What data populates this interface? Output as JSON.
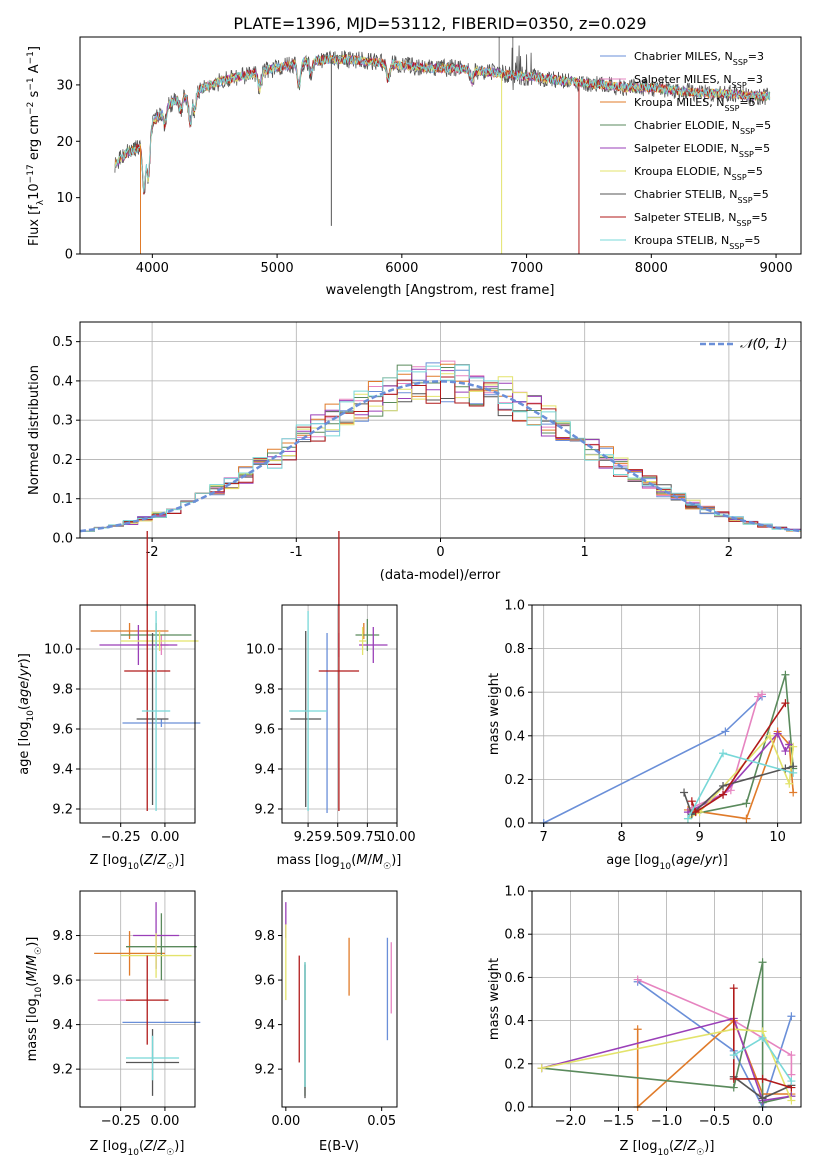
{
  "title": "PLATE=1396, MJD=53112, FIBERID=0350, z=0.029",
  "colors": {
    "c0": "#6a8fd8",
    "c1": "#e684c0",
    "c2": "#e07b2a",
    "c3": "#5a8a5c",
    "c4": "#9a3fb8",
    "c5": "#e3e36b",
    "c6": "#555555",
    "c7": "#b11a1a",
    "c8": "#78d8d8"
  },
  "chart_data": [
    {
      "id": "spectrum",
      "type": "line",
      "xlabel": "wavelength [Angstrom, rest frame]",
      "ylabel": "Flux [f_λ10^-17 erg cm^-2 s^-1 A^-1]",
      "xlim": [
        3420,
        9200
      ],
      "ylim": [
        0,
        38.5
      ],
      "xticks": [
        4000,
        5000,
        6000,
        7000,
        8000,
        9000
      ],
      "yticks": [
        0,
        10,
        20,
        30
      ],
      "grid": false,
      "legend_position": "top-right",
      "series": [
        {
          "name": "Chabrier MILES, N_SSP=3",
          "color_key": "c0"
        },
        {
          "name": "Salpeter MILES, N_SSP=3",
          "color_key": "c1"
        },
        {
          "name": "Kroupa MILES, N_SSP=5",
          "color_key": "c2"
        },
        {
          "name": "Chabrier ELODIE, N_SSP=5",
          "color_key": "c3"
        },
        {
          "name": "Salpeter ELODIE, N_SSP=5",
          "color_key": "c4"
        },
        {
          "name": "Kroupa ELODIE, N_SSP=5",
          "color_key": "c5"
        },
        {
          "name": "Chabrier STELIB, N_SSP=5",
          "color_key": "c6"
        },
        {
          "name": "Salpeter STELIB, N_SSP=5",
          "color_key": "c7"
        },
        {
          "name": "Kroupa STELIB, N_SSP=5",
          "color_key": "c8"
        }
      ],
      "continuum": {
        "x": [
          3700,
          3800,
          3900,
          4000,
          4100,
          4200,
          4300,
          4400,
          4600,
          4800,
          5000,
          5200,
          5400,
          5600,
          5800,
          6000,
          6200,
          6400,
          6600,
          6800,
          7000,
          7200,
          7400,
          7600,
          7800,
          8000,
          8200,
          8400,
          8600,
          8800,
          8950
        ],
        "y": [
          16,
          18,
          19,
          23,
          26,
          27.5,
          28,
          29.5,
          31,
          32,
          33,
          34,
          34.5,
          34.5,
          34,
          33.5,
          33,
          33,
          32.5,
          32,
          31.5,
          31,
          30.5,
          30,
          29.5,
          29.5,
          29,
          28.5,
          28.5,
          28,
          28
        ]
      }
    },
    {
      "id": "residuals",
      "type": "histogram",
      "xlabel": "(data-model)/error",
      "ylabel": "Normed distribution",
      "xlim": [
        -2.5,
        2.5
      ],
      "ylim": [
        0,
        0.55
      ],
      "xticks": [
        -2,
        -1,
        0,
        1,
        2
      ],
      "yticks": [
        0.0,
        0.1,
        0.2,
        0.3,
        0.4,
        0.5
      ],
      "grid": true,
      "legend": "N(0,1)",
      "legend_position": "top-right",
      "bin_width": 0.1
    },
    {
      "id": "age-vs-Z",
      "type": "scatter",
      "xlabel": "Z [log10(Z/Z☉)]",
      "ylabel": "age  [log10(age/yr)]",
      "xlim": [
        -0.48,
        0.17
      ],
      "ylim": [
        9.13,
        10.22
      ],
      "xticks": [
        -0.25,
        0.0
      ],
      "xtick_labels": [
        "−0.25",
        "0.00"
      ],
      "yticks": [
        9.2,
        9.4,
        9.6,
        9.8,
        10.0
      ],
      "grid": true,
      "points": [
        {
          "color_key": "c0",
          "x": -0.02,
          "xerr": 0.22,
          "y": 9.63,
          "yerr": 0.02
        },
        {
          "color_key": "c1",
          "x": -0.02,
          "xerr": 0.04,
          "y": 10.02,
          "yerr": 0.05
        },
        {
          "color_key": "c2",
          "x": -0.2,
          "xerr": 0.22,
          "y": 10.09,
          "yerr": 0.04
        },
        {
          "color_key": "c3",
          "x": -0.05,
          "xerr": 0.2,
          "y": 10.07,
          "yerr": 0.06
        },
        {
          "color_key": "c4",
          "x": -0.15,
          "xerr": 0.22,
          "y": 10.02,
          "yerr": 0.1
        },
        {
          "color_key": "c5",
          "x": -0.03,
          "xerr": 0.22,
          "y": 10.04,
          "yerr": 0.05
        },
        {
          "color_key": "c6",
          "x": -0.07,
          "xerr": 0.09,
          "y": 9.65,
          "yerr": 0.43
        },
        {
          "color_key": "c7",
          "x": -0.1,
          "xerr": 0.13,
          "y": 9.89,
          "yerr": 0.7
        },
        {
          "color_key": "c8",
          "x": -0.05,
          "xerr": 0.08,
          "y": 9.69,
          "yerr": 0.5
        }
      ]
    },
    {
      "id": "age-vs-mass",
      "type": "scatter",
      "xlabel": "mass [log10(M/M☉)]",
      "xlim": [
        9.03,
        10.0
      ],
      "ylim": [
        9.13,
        10.22
      ],
      "xticks": [
        9.25,
        9.5,
        9.75,
        10.0
      ],
      "xtick_labels": [
        "9.25",
        "9.50",
        "9.75",
        "10.00"
      ],
      "yticks": [
        9.2,
        9.4,
        9.6,
        9.8,
        10.0
      ],
      "grid": true,
      "points": [
        {
          "color_key": "c0",
          "x": 9.41,
          "xerr": 0.0,
          "y": 9.63,
          "yerr": 0.45
        },
        {
          "color_key": "c1",
          "x": 9.51,
          "xerr": 0.0,
          "y": 10.02,
          "yerr": 0.06
        },
        {
          "color_key": "c2",
          "x": 9.72,
          "xerr": 0.0,
          "y": 10.09,
          "yerr": 0.04
        },
        {
          "color_key": "c3",
          "x": 9.75,
          "xerr": 0.1,
          "y": 10.07,
          "yerr": 0.08
        },
        {
          "color_key": "c4",
          "x": 9.8,
          "xerr": 0.12,
          "y": 10.02,
          "yerr": 0.09
        },
        {
          "color_key": "c5",
          "x": 9.71,
          "xerr": 0.03,
          "y": 10.04,
          "yerr": 0.07
        },
        {
          "color_key": "c6",
          "x": 9.23,
          "xerr": 0.13,
          "y": 9.65,
          "yerr": 0.44
        },
        {
          "color_key": "c7",
          "x": 9.51,
          "xerr": 0.17,
          "y": 9.89,
          "yerr": 0.7
        },
        {
          "color_key": "c8",
          "x": 9.25,
          "xerr": 0.16,
          "y": 9.69,
          "yerr": 0.5
        }
      ]
    },
    {
      "id": "weight-vs-age",
      "type": "line",
      "xlabel": "age  [log10(age/yr)]",
      "ylabel": "mass weight",
      "xlim": [
        6.85,
        10.3
      ],
      "ylim": [
        0,
        1.0
      ],
      "xticks": [
        7,
        8,
        9,
        10
      ],
      "yticks": [
        0.0,
        0.2,
        0.4,
        0.6,
        0.8,
        1.0
      ],
      "grid": true,
      "series": [
        {
          "color_key": "c0",
          "x": [
            7.0,
            9.33,
            9.8
          ],
          "y": [
            0.0,
            0.42,
            0.58
          ]
        },
        {
          "color_key": "c1",
          "x": [
            8.9,
            9.4,
            9.75,
            9.8
          ],
          "y": [
            0.07,
            0.15,
            0.58,
            0.59
          ]
        },
        {
          "color_key": "c2",
          "x": [
            8.85,
            9.6,
            10.0,
            10.15,
            10.2
          ],
          "y": [
            0.06,
            0.02,
            0.42,
            0.36,
            0.14
          ]
        },
        {
          "color_key": "c3",
          "x": [
            8.9,
            9.6,
            10.1,
            10.2
          ],
          "y": [
            0.04,
            0.09,
            0.68,
            0.25
          ]
        },
        {
          "color_key": "c4",
          "x": [
            8.85,
            9.3,
            10.0,
            10.1,
            10.15
          ],
          "y": [
            0.05,
            0.13,
            0.41,
            0.33,
            0.36
          ]
        },
        {
          "color_key": "c5",
          "x": [
            8.85,
            9.0,
            9.9,
            10.15,
            10.2
          ],
          "y": [
            0.02,
            0.05,
            0.4,
            0.18,
            0.35
          ]
        },
        {
          "color_key": "c6",
          "x": [
            8.8,
            8.9,
            9.3,
            10.1,
            10.2
          ],
          "y": [
            0.14,
            0.04,
            0.17,
            0.25,
            0.26
          ]
        },
        {
          "color_key": "c7",
          "x": [
            8.9,
            8.95,
            9.3,
            10.1
          ],
          "y": [
            0.1,
            0.05,
            0.13,
            0.55
          ]
        },
        {
          "color_key": "c8",
          "x": [
            8.85,
            9.3,
            10.2
          ],
          "y": [
            0.02,
            0.32,
            0.23
          ]
        }
      ]
    },
    {
      "id": "mass-vs-Z",
      "type": "scatter",
      "xlabel": "Z [log10(Z/Z☉)]",
      "ylabel": "mass [log10(M/M☉)]",
      "xlim": [
        -0.48,
        0.17
      ],
      "ylim": [
        9.03,
        10.0
      ],
      "xticks": [
        -0.25,
        0.0
      ],
      "xtick_labels": [
        "−0.25",
        "0.00"
      ],
      "yticks": [
        9.2,
        9.4,
        9.6,
        9.8
      ],
      "grid": true,
      "points": [
        {
          "color_key": "c0",
          "x": -0.02,
          "xerr": 0.22,
          "y": 9.41,
          "yerr": 0.0
        },
        {
          "color_key": "c1",
          "x": -0.28,
          "xerr": 0.1,
          "y": 9.51,
          "yerr": 0.0
        },
        {
          "color_key": "c2",
          "x": -0.2,
          "xerr": 0.2,
          "y": 9.72,
          "yerr": 0.1
        },
        {
          "color_key": "c3",
          "x": -0.02,
          "xerr": 0.2,
          "y": 9.75,
          "yerr": 0.15
        },
        {
          "color_key": "c4",
          "x": -0.05,
          "xerr": 0.13,
          "y": 9.8,
          "yerr": 0.15
        },
        {
          "color_key": "c5",
          "x": -0.05,
          "xerr": 0.2,
          "y": 9.71,
          "yerr": 0.1
        },
        {
          "color_key": "c6",
          "x": -0.07,
          "xerr": 0.15,
          "y": 9.23,
          "yerr": 0.15
        },
        {
          "color_key": "c7",
          "x": -0.1,
          "xerr": 0.12,
          "y": 9.51,
          "yerr": 0.2
        },
        {
          "color_key": "c8",
          "x": -0.07,
          "xerr": 0.15,
          "y": 9.25,
          "yerr": 0.1
        }
      ]
    },
    {
      "id": "mass-vs-ebv",
      "type": "scatter",
      "xlabel": "E(B-V)",
      "xlim": [
        -0.002,
        0.058
      ],
      "ylim": [
        9.03,
        10.0
      ],
      "xticks": [
        0.0,
        0.05
      ],
      "xtick_labels": [
        "0.00",
        "0.05"
      ],
      "yticks": [
        9.2,
        9.4,
        9.6,
        9.8
      ],
      "grid": false,
      "points": [
        {
          "color_key": "c0",
          "x": 0.053,
          "y": 9.56,
          "yerr": 0.23
        },
        {
          "color_key": "c1",
          "x": 0.055,
          "y": 9.61,
          "yerr": 0.16
        },
        {
          "color_key": "c2",
          "x": 0.033,
          "y": 9.66,
          "yerr": 0.13
        },
        {
          "color_key": "c3",
          "x": 0.01,
          "y": 9.38,
          "yerr": 0.3
        },
        {
          "color_key": "c4",
          "x": 0.0,
          "y": 9.87,
          "yerr": 0.08
        },
        {
          "color_key": "c5",
          "x": 0.0,
          "y": 9.68,
          "yerr": 0.17
        },
        {
          "color_key": "c6",
          "x": 0.01,
          "y": 9.37,
          "yerr": 0.3
        },
        {
          "color_key": "c7",
          "x": 0.007,
          "y": 9.47,
          "yerr": 0.24
        },
        {
          "color_key": "c8",
          "x": 0.01,
          "y": 9.4,
          "yerr": 0.28
        }
      ]
    },
    {
      "id": "weight-vs-Z",
      "type": "line",
      "xlabel": "Z [log10(Z/Z☉)]",
      "ylabel": "mass weight",
      "xlim": [
        -2.4,
        0.4
      ],
      "ylim": [
        0,
        1.0
      ],
      "xticks": [
        -2.0,
        -1.5,
        -1.0,
        -0.5,
        0.0
      ],
      "xtick_labels": [
        "−2.0",
        "−1.5",
        "−1.0",
        "−0.5",
        "0.0"
      ],
      "yticks": [
        0.0,
        0.2,
        0.4,
        0.6,
        0.8,
        1.0
      ],
      "grid": true,
      "series": [
        {
          "color_key": "c0",
          "x": [
            -1.3,
            -0.3,
            0.0,
            0.3
          ],
          "y": [
            0.58,
            0.26,
            0.0,
            0.42
          ]
        },
        {
          "color_key": "c1",
          "x": [
            -1.3,
            -0.3,
            0.3,
            0.3
          ],
          "y": [
            0.59,
            0.4,
            0.24,
            0.15
          ]
        },
        {
          "color_key": "c2",
          "x": [
            -1.3,
            -1.3,
            -0.3,
            0.0,
            0.3
          ],
          "y": [
            0.36,
            0.0,
            0.4,
            0.06,
            0.06
          ]
        },
        {
          "color_key": "c3",
          "x": [
            -2.3,
            -0.3,
            0.0,
            0.0,
            0.3
          ],
          "y": [
            0.18,
            0.09,
            0.67,
            0.02,
            0.05
          ]
        },
        {
          "color_key": "c4",
          "x": [
            -2.3,
            -0.3,
            0.0,
            0.3
          ],
          "y": [
            0.18,
            0.41,
            0.03,
            0.05
          ]
        },
        {
          "color_key": "c5",
          "x": [
            -2.3,
            -0.3,
            0.0,
            0.3
          ],
          "y": [
            0.18,
            0.36,
            0.35,
            0.03
          ]
        },
        {
          "color_key": "c6",
          "x": [
            -0.3,
            0.0,
            0.3
          ],
          "y": [
            0.14,
            0.04,
            0.1
          ]
        },
        {
          "color_key": "c7",
          "x": [
            -0.3,
            -0.3,
            0.0,
            0.3
          ],
          "y": [
            0.55,
            0.13,
            0.13,
            0.09
          ]
        },
        {
          "color_key": "c8",
          "x": [
            -0.3,
            0.0,
            0.3
          ],
          "y": [
            0.24,
            0.32,
            0.12
          ]
        }
      ]
    }
  ]
}
